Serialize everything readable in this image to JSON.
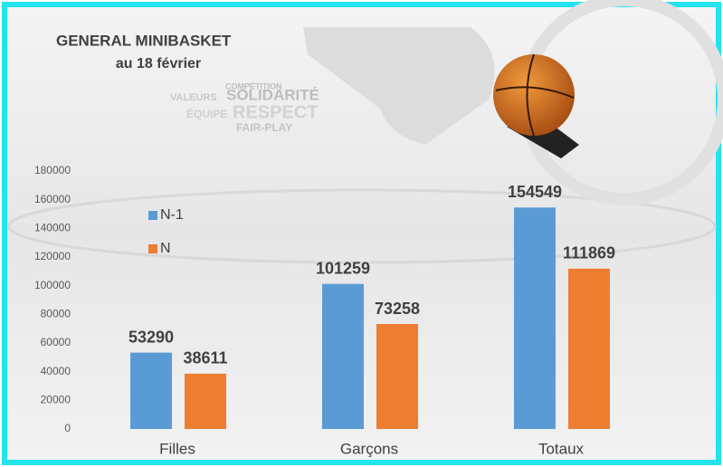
{
  "chart_data": {
    "type": "bar",
    "title": "GENERAL MINIBASKET",
    "subtitle": "au 18 février",
    "annotations": [
      "COMPÉTITION",
      "VALEURS",
      "SOLIDARITÉ",
      "ÉQUIPE",
      "RESPECT",
      "FAIR-PLAY"
    ],
    "categories": [
      "Filles",
      "Garçons",
      "Totaux"
    ],
    "series": [
      {
        "name": "N-1",
        "color": "#5b9bd5",
        "values": [
          53290,
          101259,
          154549
        ]
      },
      {
        "name": "N",
        "color": "#ed7d31",
        "values": [
          38611,
          73258,
          111869
        ]
      }
    ],
    "ylim": [
      0,
      180000
    ],
    "yticks": [
      0,
      20000,
      40000,
      60000,
      80000,
      100000,
      120000,
      140000,
      160000,
      180000
    ],
    "grid": false,
    "legend": "left"
  }
}
